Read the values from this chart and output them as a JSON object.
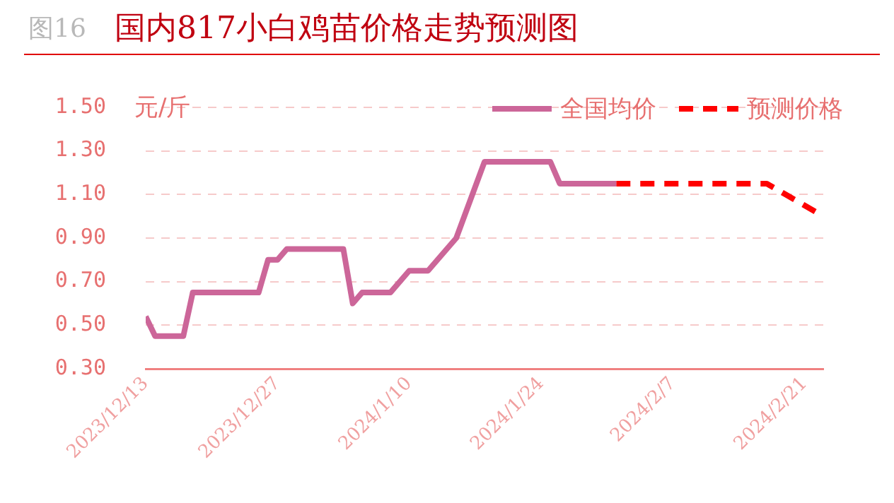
{
  "chart_data": {
    "type": "line",
    "title": "国内817小白鸡苗价格走势预测图",
    "ylabel": "元/斤",
    "annotations": [
      "图16"
    ],
    "ylim": [
      0.3,
      1.5
    ],
    "yticks": [
      {
        "value": 0.3,
        "label": "0.30"
      },
      {
        "value": 0.5,
        "label": "0.50"
      },
      {
        "value": 0.7,
        "label": "0.70"
      },
      {
        "value": 0.9,
        "label": "0.90"
      },
      {
        "value": 1.1,
        "label": "1.10"
      },
      {
        "value": 1.3,
        "label": "1.30"
      },
      {
        "value": 1.5,
        "label": "1.50"
      }
    ],
    "xlim": [
      "2023-12-13",
      "2024-02-23"
    ],
    "xticks": [
      {
        "value": "2023-12-13",
        "label": "2023/12/13"
      },
      {
        "value": "2023-12-27",
        "label": "2023/12/27"
      },
      {
        "value": "2024-01-10",
        "label": "2024/1/10"
      },
      {
        "value": "2024-01-24",
        "label": "2024/1/24"
      },
      {
        "value": "2024-02-07",
        "label": "2024/2/7"
      },
      {
        "value": "2024-02-21",
        "label": "2024/2/21"
      }
    ],
    "grid": "y",
    "legend": "top right",
    "series": [
      {
        "name": "全国均价",
        "color": "#cc6699",
        "line_style": "solid",
        "x": [
          "2023-12-13",
          "2023-12-14",
          "2023-12-17",
          "2023-12-18",
          "2023-12-25",
          "2023-12-26",
          "2023-12-27",
          "2023-12-28",
          "2024-01-03",
          "2024-01-04",
          "2024-01-05",
          "2024-01-08",
          "2024-01-10",
          "2024-01-12",
          "2024-01-15",
          "2024-01-18",
          "2024-01-25",
          "2024-01-26",
          "2024-02-01"
        ],
        "values": [
          0.54,
          0.45,
          0.45,
          0.65,
          0.65,
          0.8,
          0.8,
          0.85,
          0.85,
          0.6,
          0.65,
          0.65,
          0.75,
          0.75,
          0.9,
          1.25,
          1.25,
          1.15,
          1.15
        ]
      },
      {
        "name": "预测价格",
        "color": "#ff0000",
        "line_style": "dashed",
        "x": [
          "2024-02-01",
          "2024-02-17",
          "2024-02-19",
          "2024-02-23"
        ],
        "values": [
          1.15,
          1.15,
          1.1,
          1.0
        ]
      }
    ]
  }
}
